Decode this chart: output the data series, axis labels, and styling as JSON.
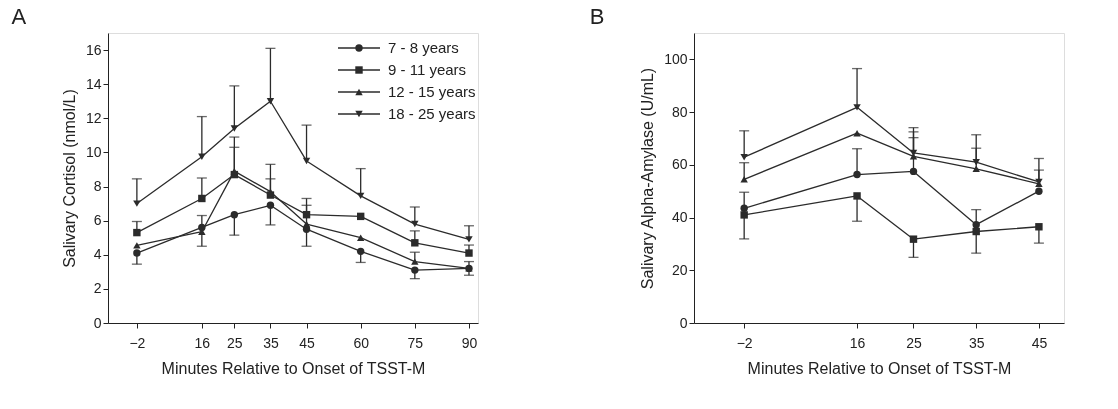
{
  "chart_data": [
    {
      "type": "line",
      "title": "A",
      "xlabel": "Minutes Relative to Onset of TSST-M",
      "ylabel": "Salivary Cortisol (nmol/L)",
      "x": [
        -2,
        16,
        25,
        35,
        45,
        60,
        75,
        90
      ],
      "xlim": [
        -10,
        92.5
      ],
      "xticks": [
        -2,
        16,
        25,
        35,
        45,
        60,
        75,
        90
      ],
      "ylim": [
        0,
        17
      ],
      "yticks": [
        0,
        2,
        4,
        6,
        8,
        10,
        12,
        14,
        16
      ],
      "grid": false,
      "legend": "top right",
      "line_style": "solid",
      "series": [
        {
          "name": "7 - 8 years",
          "color": "#2b2b2b",
          "marker": "circle",
          "values": [
            4.1,
            5.6,
            6.35,
            6.9,
            5.5,
            4.2,
            3.1,
            3.2
          ],
          "errors": [
            [
              3.45,
              4.1
            ],
            [
              4.5,
              6.3
            ],
            [
              5.15,
              6.35
            ],
            [
              5.75,
              6.9
            ],
            [
              4.5,
              5.5
            ],
            [
              3.55,
              4.2
            ],
            [
              2.6,
              3.1
            ],
            [
              2.8,
              3.2
            ]
          ]
        },
        {
          "name": "9 - 11 years",
          "color": "#2b2b2b",
          "marker": "square",
          "values": [
            5.3,
            7.3,
            8.7,
            7.5,
            6.35,
            6.25,
            4.7,
            4.1
          ],
          "errors": [
            [
              5.3,
              5.95
            ],
            [
              7.3,
              8.5
            ],
            [
              8.7,
              10.9
            ],
            [
              7.5,
              9.3
            ],
            [
              6.35,
              7.3
            ],
            null,
            [
              4.7,
              5.4
            ],
            [
              4.1,
              4.57
            ]
          ]
        },
        {
          "name": "12 - 15 years",
          "color": "#2b2b2b",
          "marker": "triangle",
          "values": [
            4.55,
            5.35,
            8.9,
            7.7,
            5.8,
            5.0,
            3.6,
            3.2
          ],
          "errors": [
            null,
            null,
            [
              8.9,
              10.3
            ],
            [
              7.7,
              8.45
            ],
            [
              5.8,
              6.9
            ],
            null,
            [
              3.6,
              4.15
            ],
            [
              3.2,
              3.6
            ]
          ]
        },
        {
          "name": "18 - 25 years",
          "color": "#2b2b2b",
          "marker": "triangle-down",
          "values": [
            7.0,
            9.75,
            11.4,
            13.0,
            9.5,
            7.45,
            5.8,
            4.9
          ],
          "errors": [
            [
              7.0,
              8.45
            ],
            [
              9.75,
              12.1
            ],
            [
              11.4,
              13.9
            ],
            [
              13.0,
              16.1
            ],
            [
              9.5,
              11.6
            ],
            [
              7.45,
              9.05
            ],
            [
              5.8,
              6.8
            ],
            [
              4.9,
              5.7
            ]
          ]
        }
      ]
    },
    {
      "type": "line",
      "title": "B",
      "xlabel": "Minutes Relative to Onset of TSST-M",
      "ylabel": "Salivary Alpha-Amylase (U/mL)",
      "x": [
        -2,
        16,
        25,
        35,
        45
      ],
      "xlim": [
        -10,
        49
      ],
      "xticks": [
        -2,
        16,
        25,
        35,
        45
      ],
      "ylim": [
        0,
        110
      ],
      "yticks": [
        0,
        20,
        40,
        60,
        80,
        100
      ],
      "grid": false,
      "line_style": "solid",
      "series": [
        {
          "color": "#2b2b2b",
          "marker": "circle",
          "values": [
            43.5,
            56.3,
            57.5,
            37.3,
            50.0
          ],
          "errors": [
            [
              43.5,
              49.6
            ],
            [
              56.3,
              66.1
            ],
            [
              57.5,
              70.3
            ],
            [
              37.3,
              43.0
            ],
            null
          ]
        },
        {
          "color": "#2b2b2b",
          "marker": "square",
          "values": [
            41.0,
            48.2,
            31.8,
            34.7,
            36.5
          ],
          "errors": [
            [
              31.9,
              41.0
            ],
            [
              38.6,
              48.2
            ],
            [
              24.9,
              31.8
            ],
            [
              26.5,
              34.7
            ],
            [
              30.3,
              36.5
            ]
          ]
        },
        {
          "color": "#2b2b2b",
          "marker": "triangle",
          "values": [
            54.5,
            72.0,
            63.2,
            58.5,
            52.8
          ],
          "errors": [
            [
              54.5,
              60.8
            ],
            null,
            [
              63.2,
              72.5
            ],
            [
              58.5,
              66.3
            ],
            [
              52.8,
              58.0
            ]
          ]
        },
        {
          "color": "#2b2b2b",
          "marker": "triangle-down",
          "values": [
            62.9,
            81.8,
            64.5,
            61.0,
            53.5
          ],
          "errors": [
            [
              62.9,
              72.9
            ],
            [
              81.8,
              96.5
            ],
            [
              64.5,
              74.1
            ],
            [
              61.0,
              71.4
            ],
            [
              53.5,
              62.4
            ]
          ]
        }
      ]
    }
  ]
}
